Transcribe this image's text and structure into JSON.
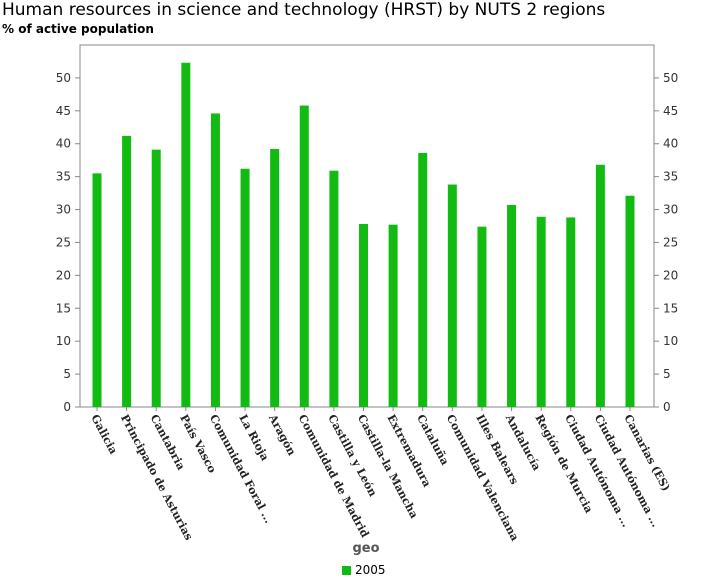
{
  "header": {
    "title": "Human resources in science and technology (HRST) by NUTS 2 regions",
    "subtitle": "% of active population"
  },
  "colors": {
    "series": "#11bb11",
    "axis": "#888888"
  },
  "chart_data": {
    "type": "bar",
    "title": "Human resources in science and technology (HRST) by NUTS 2 regions",
    "subtitle": "% of active population",
    "xlabel": "geo",
    "ylabel": "",
    "ylim": [
      0,
      55
    ],
    "yticks": [
      0,
      5,
      10,
      15,
      20,
      25,
      30,
      35,
      40,
      45,
      50
    ],
    "grid": false,
    "legend_position": "bottom",
    "categories": [
      "Galicia",
      "Principado de Asturias",
      "Cantabria",
      "País Vasco",
      "Comunidad Foral ...",
      "La Rioja",
      "Aragón",
      "Comunidad de Madrid",
      "Castilla y León",
      "Castilla-la Mancha",
      "Extremadura",
      "Cataluña",
      "Comunidad Valenciana",
      "Illes Balears",
      "Andalucía",
      "Región de Murcia",
      "Ciudad Autónoma ...",
      "Ciudad Autónoma ...",
      "Canarias (ES)"
    ],
    "series": [
      {
        "name": "2005",
        "values": [
          35.5,
          41.2,
          39.1,
          52.3,
          44.6,
          36.2,
          39.2,
          45.8,
          35.9,
          27.8,
          27.7,
          38.6,
          33.8,
          27.4,
          30.7,
          28.9,
          28.8,
          36.8,
          32.1
        ]
      }
    ]
  }
}
